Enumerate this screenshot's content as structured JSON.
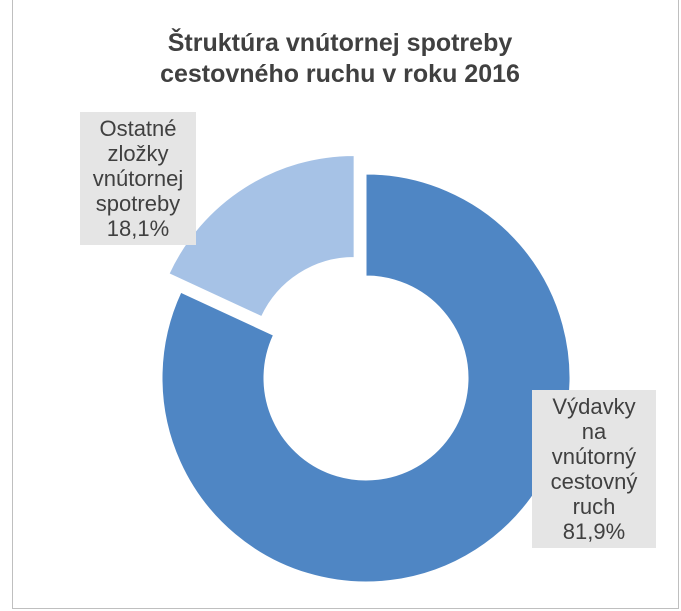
{
  "chart_data": {
    "type": "donut",
    "title": "Štruktúra vnútornej spotreby cestovného ruchu v roku 2016",
    "categories": [
      "Výdavky na vnútorný cestovný ruch",
      "Ostatné zložky vnútornej spotreby"
    ],
    "values": [
      81.9,
      18.1
    ],
    "value_labels": [
      "81,9%",
      "18,1%"
    ],
    "colors": [
      "#4f86c4",
      "#a6c2e6"
    ]
  }
}
